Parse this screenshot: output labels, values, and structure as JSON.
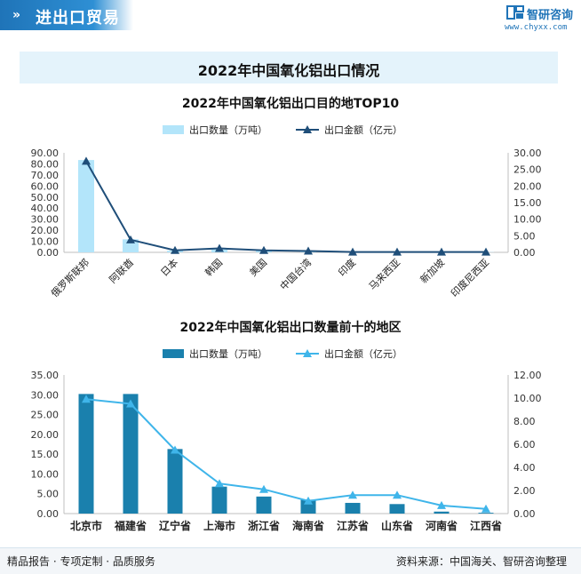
{
  "header": {
    "title": "进出口贸易",
    "logo_name": "智研咨询",
    "logo_url": "www.chyxx.com"
  },
  "page_title": "2022年中国氧化铝出口情况",
  "footer": {
    "left": "精品报告 · 专项定制 · 品质服务",
    "right": "资料来源：中国海关、智研咨询整理"
  },
  "colors": {
    "header": "#1f74b8",
    "band": "#e4f3fb",
    "bar1": "#b3e5fa",
    "line1": "#1f4e79",
    "bar2": "#1a80ad",
    "line2": "#3fb5ea"
  },
  "chart_data": [
    {
      "type": "bar",
      "title": "2022年中国氧化铝出口目的地TOP10",
      "categories": [
        "俄罗斯联邦",
        "阿联酋",
        "日本",
        "韩国",
        "美国",
        "中国台湾",
        "印度",
        "马来西亚",
        "新加坡",
        "印度尼西亚"
      ],
      "series": [
        {
          "name": "出口数量（万吨）",
          "type": "bar",
          "axis": "left",
          "values": [
            83.5,
            11.8,
            1.5,
            3.5,
            1.8,
            1.2,
            0.4,
            0.3,
            0.3,
            0.2
          ]
        },
        {
          "name": "出口金额（亿元）",
          "type": "line",
          "axis": "right",
          "values": [
            27.5,
            3.8,
            0.6,
            1.2,
            0.6,
            0.4,
            0.1,
            0.1,
            0.1,
            0.1
          ]
        }
      ],
      "yleft": {
        "min": 0,
        "max": 90,
        "step": 10,
        "ticks": [
          "0.00",
          "10.00",
          "20.00",
          "30.00",
          "40.00",
          "50.00",
          "60.00",
          "70.00",
          "80.00",
          "90.00"
        ]
      },
      "yright": {
        "min": 0,
        "max": 30,
        "step": 5,
        "ticks": [
          "0.00",
          "5.00",
          "10.00",
          "15.00",
          "20.00",
          "25.00",
          "30.00"
        ]
      },
      "legend": "top"
    },
    {
      "type": "bar",
      "title": "2022年中国氧化铝出口数量前十的地区",
      "categories": [
        "北京市",
        "福建省",
        "辽宁省",
        "上海市",
        "浙江省",
        "海南省",
        "江苏省",
        "山东省",
        "河南省",
        "江西省"
      ],
      "series": [
        {
          "name": "出口数量（万吨）",
          "type": "bar",
          "axis": "left",
          "values": [
            30.2,
            30.2,
            16.3,
            6.8,
            4.3,
            3.5,
            2.7,
            2.4,
            0.5,
            0.2
          ]
        },
        {
          "name": "出口金额（亿元）",
          "type": "line",
          "axis": "right",
          "values": [
            9.9,
            9.5,
            5.5,
            2.6,
            2.1,
            1.1,
            1.6,
            1.6,
            0.7,
            0.4
          ]
        }
      ],
      "yleft": {
        "min": 0,
        "max": 35,
        "step": 5,
        "ticks": [
          "0.00",
          "5.00",
          "10.00",
          "15.00",
          "20.00",
          "25.00",
          "30.00",
          "35.00"
        ]
      },
      "yright": {
        "min": 0,
        "max": 12,
        "step": 2,
        "ticks": [
          "0.00",
          "2.00",
          "4.00",
          "6.00",
          "8.00",
          "10.00",
          "12.00"
        ]
      },
      "legend": "top"
    }
  ]
}
